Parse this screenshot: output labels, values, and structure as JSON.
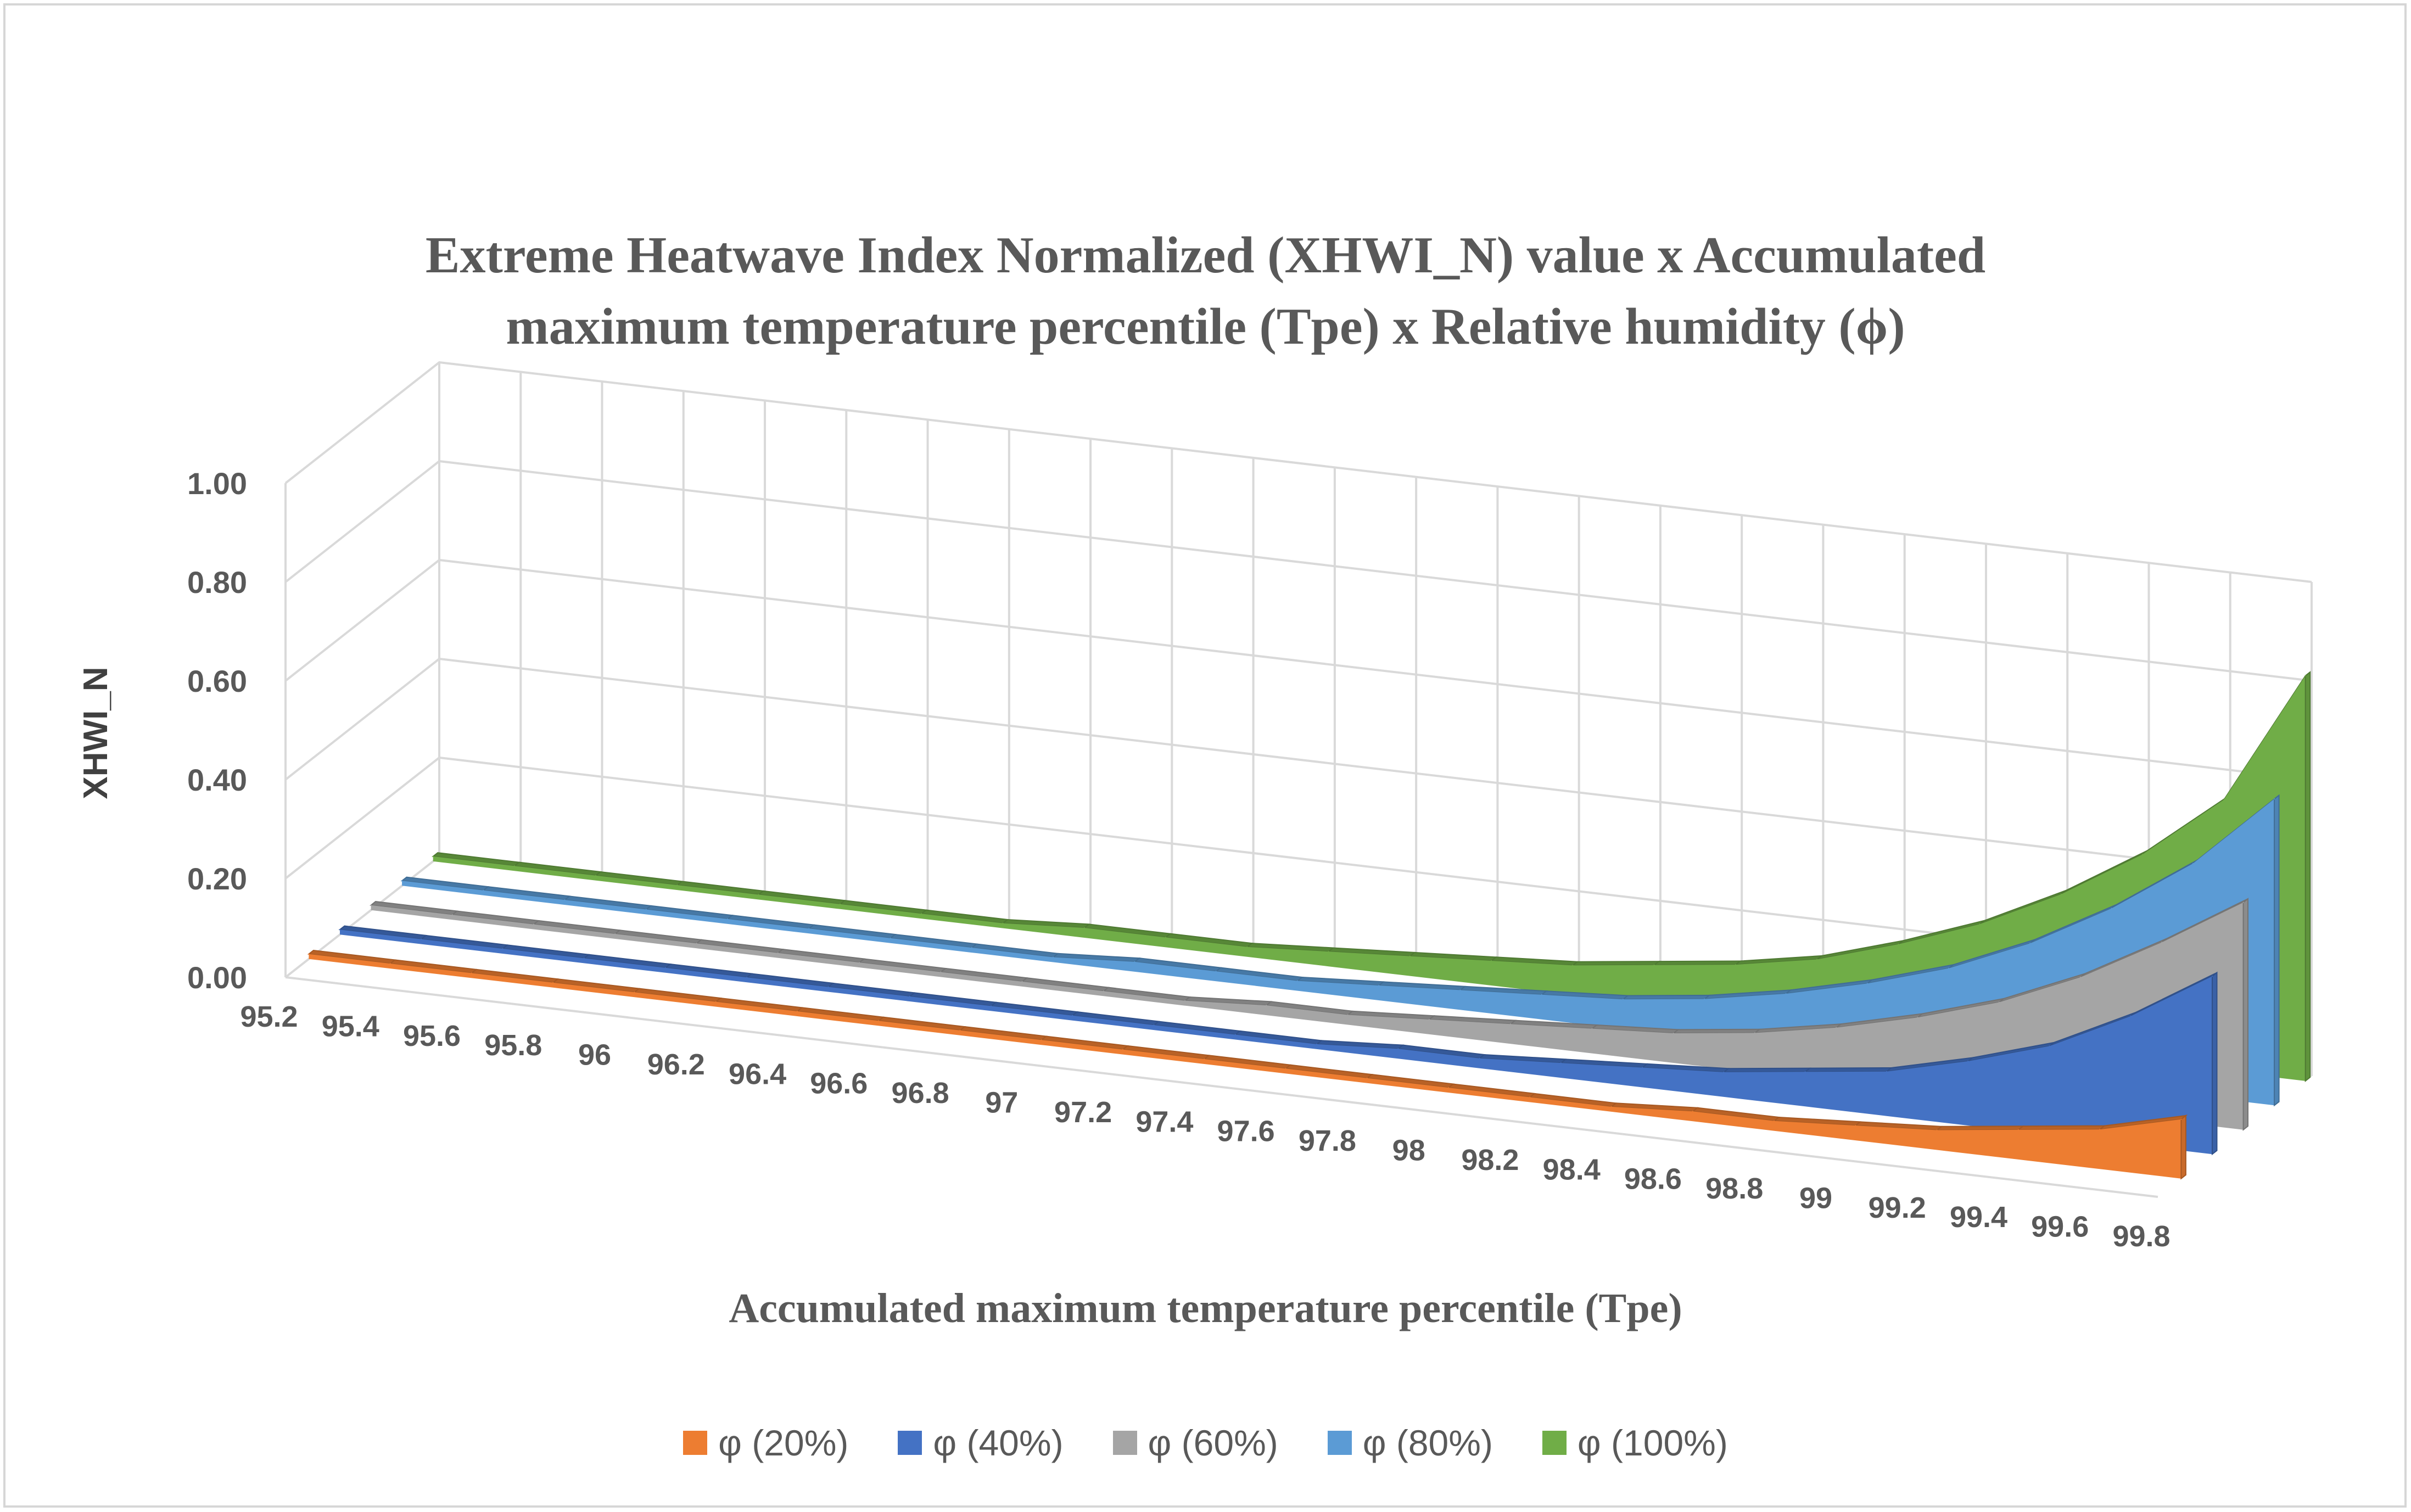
{
  "chart_data": {
    "type": "area",
    "title_line1": "Extreme Heatwave Index Normalized (XHWI_N) value x Accumulated",
    "title_line2": "maximum temperature percentile (Tpe) x Relative humidity (ϕ)",
    "xlabel": "Accumulated maximum temperature percentile (Tpe)",
    "ylabel": "XHWI_N",
    "ylim": [
      0,
      1
    ],
    "y_ticks": [
      "0.00",
      "0.20",
      "0.40",
      "0.60",
      "0.80",
      "1.00"
    ],
    "categories": [
      "95.2",
      "95.4",
      "95.6",
      "95.8",
      "96",
      "96.2",
      "96.4",
      "96.6",
      "96.8",
      "97",
      "97.2",
      "97.4",
      "97.6",
      "97.8",
      "98",
      "98.2",
      "98.4",
      "98.6",
      "98.8",
      "99",
      "99.2",
      "99.4",
      "99.6",
      "99.8"
    ],
    "series": [
      {
        "name": "φ (20%)",
        "color": "#ed7d31",
        "values": [
          0.01,
          0.01,
          0.01,
          0.01,
          0.01,
          0.01,
          0.01,
          0.01,
          0.01,
          0.01,
          0.01,
          0.01,
          0.01,
          0.01,
          0.01,
          0.01,
          0.01,
          0.02,
          0.02,
          0.03,
          0.04,
          0.06,
          0.08,
          0.12
        ]
      },
      {
        "name": "φ (40%)",
        "color": "#4472c4",
        "values": [
          0.01,
          0.01,
          0.01,
          0.01,
          0.01,
          0.01,
          0.01,
          0.01,
          0.01,
          0.01,
          0.01,
          0.01,
          0.01,
          0.02,
          0.02,
          0.03,
          0.04,
          0.05,
          0.07,
          0.09,
          0.13,
          0.18,
          0.26,
          0.36
        ]
      },
      {
        "name": "φ (60%)",
        "color": "#a5a5a5",
        "values": [
          0.01,
          0.01,
          0.01,
          0.01,
          0.01,
          0.01,
          0.01,
          0.01,
          0.01,
          0.01,
          0.01,
          0.02,
          0.02,
          0.03,
          0.04,
          0.05,
          0.06,
          0.08,
          0.11,
          0.15,
          0.2,
          0.27,
          0.36,
          0.46
        ]
      },
      {
        "name": "φ (80%)",
        "color": "#5b9bd5",
        "values": [
          0.01,
          0.01,
          0.01,
          0.01,
          0.01,
          0.01,
          0.01,
          0.01,
          0.01,
          0.02,
          0.02,
          0.02,
          0.03,
          0.04,
          0.05,
          0.06,
          0.08,
          0.11,
          0.15,
          0.2,
          0.27,
          0.36,
          0.47,
          0.62
        ]
      },
      {
        "name": "φ (100%)",
        "color": "#70ad47",
        "values": [
          0.01,
          0.01,
          0.01,
          0.01,
          0.01,
          0.01,
          0.01,
          0.01,
          0.02,
          0.02,
          0.02,
          0.03,
          0.04,
          0.05,
          0.06,
          0.08,
          0.1,
          0.13,
          0.18,
          0.24,
          0.32,
          0.42,
          0.55,
          0.82
        ]
      }
    ],
    "legend_position": "bottom",
    "grid": true
  }
}
